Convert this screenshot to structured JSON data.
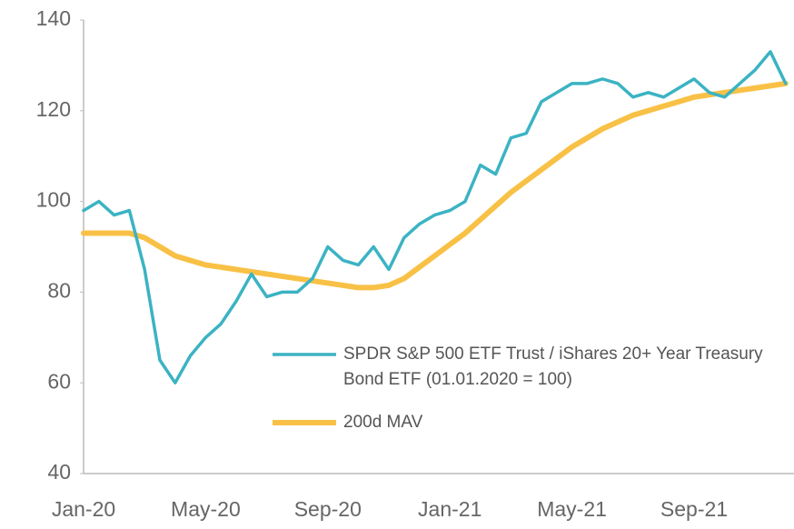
{
  "chart_data": {
    "type": "line",
    "categories": [
      "Jan-20",
      null,
      null,
      null,
      null,
      null,
      null,
      null,
      "May-20",
      null,
      null,
      null,
      null,
      null,
      null,
      null,
      "Sep-20",
      null,
      null,
      null,
      null,
      null,
      null,
      null,
      "Jan-21",
      null,
      null,
      null,
      null,
      null,
      null,
      null,
      "May-21",
      null,
      null,
      null,
      null,
      null,
      null,
      null,
      "Sep-21",
      null,
      null,
      null,
      null,
      null,
      null
    ],
    "series": [
      {
        "name": "SPDR S&P 500 ETF Trust / iShares 20+ Year Treasury Bond ETF (01.01.2020 = 100)",
        "color": "#3bb3c3",
        "values": [
          98,
          100,
          97,
          98,
          85,
          65,
          60,
          66,
          70,
          73,
          78,
          84,
          79,
          80,
          80,
          83,
          90,
          87,
          86,
          90,
          85,
          92,
          95,
          97,
          98,
          100,
          108,
          106,
          114,
          115,
          122,
          124,
          126,
          126,
          127,
          126,
          123,
          124,
          123,
          125,
          127,
          124,
          123,
          126,
          129,
          133,
          126
        ]
      },
      {
        "name": "200d MAV",
        "color": "#f8c146",
        "values": [
          93,
          93,
          93,
          93,
          92,
          90,
          88,
          87,
          86,
          85.5,
          85,
          84.5,
          84,
          83.5,
          83,
          82.5,
          82,
          81.5,
          81,
          81,
          81.5,
          83,
          85.5,
          88,
          90.5,
          93,
          96,
          99,
          102,
          104.5,
          107,
          109.5,
          112,
          114,
          116,
          117.5,
          119,
          120,
          121,
          122,
          123,
          123.5,
          124,
          124.5,
          125,
          125.5,
          126
        ]
      }
    ],
    "ylim": [
      40,
      140
    ],
    "yticks": [
      40,
      60,
      80,
      100,
      120,
      140
    ],
    "grid": false,
    "legend": "lower right"
  }
}
